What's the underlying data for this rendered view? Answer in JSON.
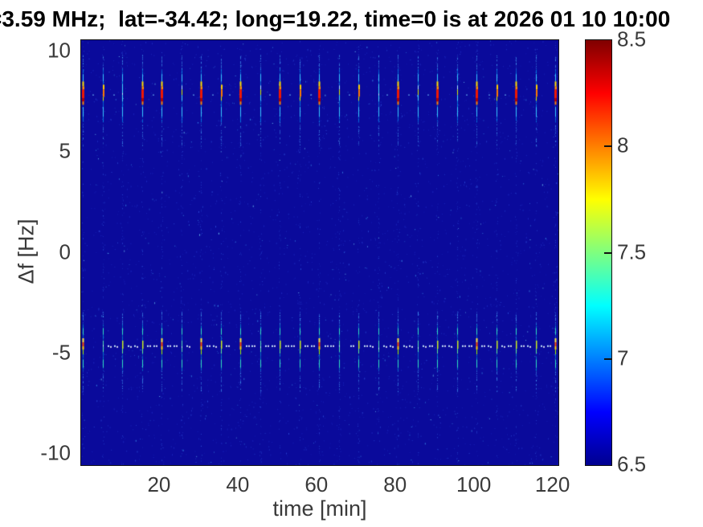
{
  "figure": {
    "title_clipped_prefix": "=",
    "title": "3.59 MHz;  lat=-34.42; long=19.22, time=0 is at 2026 01 10 10:00"
  },
  "chart_data": {
    "type": "heatmap",
    "title": "3.59 MHz;  lat=-34.42; long=19.22, time=0 is at 2026 01 10 10:00",
    "xlabel": "time [min]",
    "ylabel": "Δf [Hz]",
    "xlim": [
      0,
      121.3
    ],
    "ylim": [
      -10.55,
      10.55
    ],
    "x_ticks": [
      20,
      40,
      60,
      80,
      100,
      120
    ],
    "y_ticks": [
      10,
      5,
      0,
      -5,
      -10
    ],
    "grid": false,
    "background_color": "#0A0A9B",
    "colorbar": {
      "min": 6.5,
      "max": 8.5,
      "labels": [
        8.5,
        8,
        7.5,
        7,
        6.5
      ],
      "tick_marks": [
        8,
        7.5,
        7
      ],
      "colormap": "jet",
      "gradient_stops": [
        [
          "#00008F",
          0
        ],
        [
          "#0000FF",
          12.5
        ],
        [
          "#00FFFF",
          37.5
        ],
        [
          "#7FFF7F",
          50
        ],
        [
          "#FFFF00",
          62.5
        ],
        [
          "#FF0000",
          87.5
        ],
        [
          "#7F0000",
          100
        ]
      ]
    },
    "pulses": {
      "description": "vertical Doppler-spread echo streaks repeating every 5 min in two frequency bands",
      "start_min": 0.5,
      "period_min": 5,
      "count": 25,
      "upper_band": {
        "center_hz": 7.9,
        "extent_hz": [
          6.5,
          9.1
        ],
        "core_hz": [
          7.35,
          8.5
        ]
      },
      "lower_band": {
        "center_hz": -4.7,
        "extent_hz": [
          -5.85,
          -3.55
        ],
        "core_hz": [
          -5.15,
          -4.25
        ]
      },
      "upper_intensity": [
        1.0,
        0.6,
        0.4,
        0.9,
        1.0,
        0.45,
        1.0,
        0.62,
        1.0,
        0.48,
        0.95,
        0.7,
        1.0,
        0.5,
        0.8,
        0.42,
        1.0,
        0.46,
        0.85,
        0.52,
        1.0,
        0.72,
        0.95,
        0.65,
        1.0
      ],
      "lower_intensity": [
        0.95,
        0.55,
        0.65,
        0.75,
        0.85,
        0.5,
        0.8,
        0.6,
        0.85,
        0.55,
        0.7,
        0.68,
        0.9,
        0.52,
        0.75,
        0.58,
        0.85,
        0.5,
        0.72,
        0.62,
        0.9,
        0.6,
        0.78,
        0.62,
        0.88
      ],
      "interpulse_dots": {
        "upper_dot_hz": 7.85,
        "lower_dot_hz": -4.6,
        "lower_cluster_offsets_min": [
          1.7,
          3.3
        ],
        "upper_offset_min": 2.5
      }
    }
  }
}
